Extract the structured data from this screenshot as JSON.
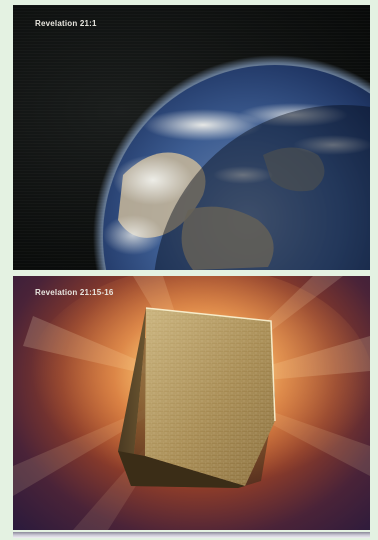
{
  "panels": [
    {
      "caption": "Revelation 21:1",
      "scene": "earth-from-space"
    },
    {
      "caption": "Revelation 21:15-16",
      "scene": "radiant-golden-cube"
    }
  ],
  "colors": {
    "page_background": "#e4f2e2",
    "space": "#0b0d0c",
    "ocean": "#2f4f86",
    "glow": "#f3b15b",
    "cube": "#a68a52"
  }
}
